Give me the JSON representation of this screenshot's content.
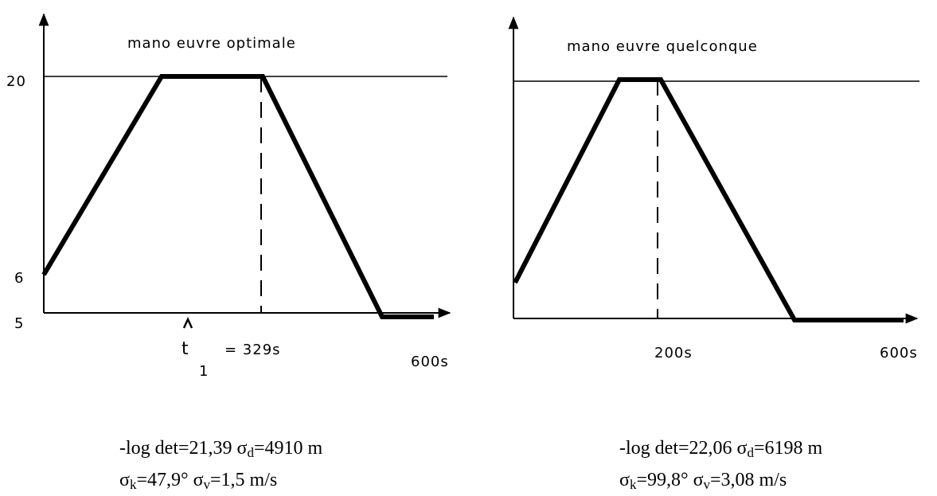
{
  "panels": [
    {
      "title": "mano euvre optimale",
      "y_labels": {
        "top": "20",
        "mid": "6",
        "bottom": "5"
      },
      "x_labels": {
        "t": "t",
        "t_sub": "1",
        "t_value": "= 329s",
        "end": "600s"
      },
      "caption": {
        "line1": {
          "a": "-log det=21,39  σ",
          "b": "d",
          "c": "=4910 m"
        },
        "line2": {
          "a": "σ",
          "b": "k",
          "c": "=47,9°  σ",
          "d": "v",
          "e": "=1,5 m/s"
        }
      }
    },
    {
      "title": "mano euvre quelconque",
      "x_labels": {
        "mid": "200s",
        "end": "600s"
      },
      "caption": {
        "line1": {
          "a": "-log det=22,06  σ",
          "b": "d",
          "c": "=6198 m"
        },
        "line2": {
          "a": "σ",
          "b": "k",
          "c": "=99,8°  σ",
          "d": "v",
          "e": "=3,08 m/s"
        }
      }
    }
  ]
}
